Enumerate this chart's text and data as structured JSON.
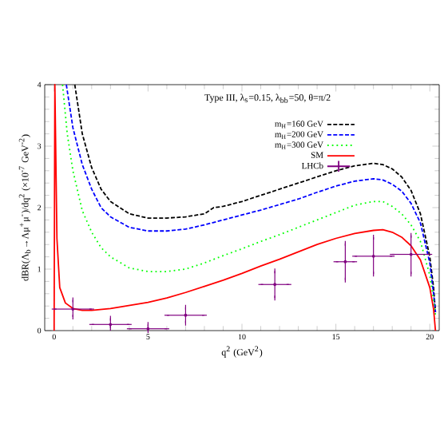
{
  "chart_data": {
    "type": "line",
    "xlabel": "q$^{2}$ (GeV$^{2}$)",
    "ylabel": "dBR(Λ$_{b}$→Λμ$^{+}$μ$^{-}$)/dq$^{2}$ (×10$^{-7}$ GeV$^{-2}$)",
    "legend_title": "Type III, λ$_{s}$=0.15, λ$_{bb}$=50, θ=π/2",
    "xlim": [
      -0.5,
      20.5
    ],
    "ylim": [
      0,
      4
    ],
    "xticks": [
      0,
      5,
      10,
      15,
      20
    ],
    "yticks": [
      0,
      1,
      2,
      3,
      4
    ],
    "legend": "top right",
    "grid": false,
    "series": [
      {
        "name": "m$_{H}$=160 GeV",
        "color": "#000000",
        "line_style": "dashed",
        "marker": "none",
        "x": [
          1.1,
          1.5,
          2,
          2.5,
          3,
          4,
          5,
          6,
          7,
          8,
          8.5,
          9,
          10,
          11,
          12,
          13,
          14,
          15,
          16,
          17,
          17.5,
          18,
          18.5,
          19,
          19.5,
          20,
          20.2,
          20.3
        ],
        "values": [
          4,
          3.2,
          2.65,
          2.3,
          2.1,
          1.9,
          1.83,
          1.83,
          1.85,
          1.9,
          2.0,
          2.02,
          2.1,
          2.2,
          2.3,
          2.4,
          2.5,
          2.6,
          2.68,
          2.72,
          2.7,
          2.63,
          2.5,
          2.28,
          1.9,
          1.2,
          0.7,
          0.3
        ]
      },
      {
        "name": "m$_{H}$=200 GeV",
        "color": "#0000ff",
        "line_style": "dashed",
        "marker": "none",
        "x": [
          0.65,
          1,
          1.5,
          2,
          2.5,
          3,
          4,
          5,
          6,
          7,
          8,
          9,
          10,
          11,
          12,
          13,
          14,
          15,
          16,
          17,
          17.5,
          18,
          18.5,
          19,
          19.5,
          20,
          20.2,
          20.3
        ],
        "values": [
          4,
          3.3,
          2.7,
          2.3,
          2.0,
          1.85,
          1.68,
          1.62,
          1.62,
          1.65,
          1.72,
          1.8,
          1.88,
          1.96,
          2.05,
          2.14,
          2.25,
          2.35,
          2.43,
          2.47,
          2.45,
          2.38,
          2.27,
          2.07,
          1.75,
          1.1,
          0.6,
          0.3
        ]
      },
      {
        "name": "m$_{H}$=300 GeV",
        "color": "#00ff00",
        "line_style": "dotted",
        "marker": "none",
        "x": [
          0.45,
          0.7,
          1,
          1.5,
          2,
          2.5,
          3,
          4,
          5,
          6,
          7,
          8,
          9,
          10,
          11,
          12,
          13,
          14,
          15,
          16,
          17,
          17.5,
          18,
          18.5,
          19,
          19.5,
          20,
          20.2,
          20.3
        ],
        "values": [
          4,
          3.2,
          2.6,
          1.95,
          1.6,
          1.35,
          1.2,
          1.02,
          0.96,
          0.96,
          1.0,
          1.1,
          1.22,
          1.33,
          1.45,
          1.56,
          1.68,
          1.8,
          1.92,
          2.04,
          2.1,
          2.1,
          2.02,
          1.9,
          1.72,
          1.45,
          0.9,
          0.5,
          0.25
        ]
      },
      {
        "name": "SM",
        "color": "#ff0000",
        "line_style": "solid",
        "marker": "none",
        "x": [
          0,
          0.04,
          0.15,
          0.3,
          0.6,
          1,
          1.5,
          2,
          3,
          4,
          5,
          6,
          7,
          8,
          9,
          10,
          11,
          12,
          13,
          14,
          15,
          16,
          17,
          17.5,
          18,
          18.5,
          19,
          19.5,
          20,
          20.2,
          20.3
        ],
        "values": [
          0,
          4,
          1.5,
          0.7,
          0.45,
          0.36,
          0.33,
          0.33,
          0.36,
          0.41,
          0.46,
          0.53,
          0.62,
          0.72,
          0.82,
          0.93,
          1.05,
          1.16,
          1.28,
          1.4,
          1.5,
          1.58,
          1.63,
          1.64,
          1.6,
          1.52,
          1.38,
          1.15,
          0.7,
          0.35,
          0
        ]
      },
      {
        "name": "LHCb",
        "type": "scatter",
        "color": "#800080",
        "marker": "circle",
        "x": [
          1,
          3,
          5,
          7,
          11.75,
          15.5,
          17,
          19
        ],
        "values": [
          0.35,
          0.1,
          0.03,
          0.25,
          0.75,
          1.12,
          1.21,
          1.24
        ],
        "errors": [
          [
            0.22,
            0.5
          ],
          [
            0.04,
            0.2
          ],
          [
            0,
            0.1
          ],
          [
            0.12,
            0.38
          ],
          [
            0.53,
            0.97
          ],
          [
            0.82,
            1.42
          ],
          [
            0.92,
            1.52
          ],
          [
            0.92,
            1.55
          ]
        ],
        "xerrors": [
          [
            0,
            2
          ],
          [
            2,
            4
          ],
          [
            4,
            6
          ],
          [
            6,
            8
          ],
          [
            11,
            12.5
          ],
          [
            15,
            16
          ],
          [
            16,
            18
          ],
          [
            18,
            20
          ]
        ]
      }
    ]
  }
}
